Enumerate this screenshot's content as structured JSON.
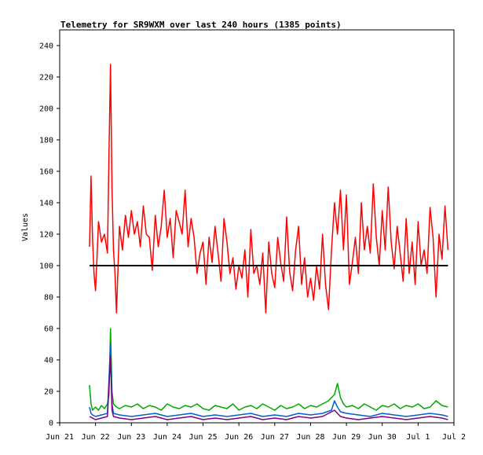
{
  "chart_data": {
    "type": "line",
    "title": "Telemetry for SR9WXM over last 240 hours (1385 points)",
    "ylabel": "Values",
    "xlabel": "",
    "ylim": [
      0,
      250
    ],
    "xlim_hours": [
      0,
      264
    ],
    "y_ticks": [
      0,
      20,
      40,
      60,
      80,
      100,
      120,
      140,
      160,
      180,
      200,
      220,
      240
    ],
    "x_ticks": [
      {
        "label": "Jun 21",
        "hour": 0
      },
      {
        "label": "Jun 22",
        "hour": 24
      },
      {
        "label": "Jun 23",
        "hour": 48
      },
      {
        "label": "Jun 24",
        "hour": 72
      },
      {
        "label": "Jun 25",
        "hour": 96
      },
      {
        "label": "Jun 26",
        "hour": 120
      },
      {
        "label": "Jun 27",
        "hour": 144
      },
      {
        "label": "Jun 28",
        "hour": 168
      },
      {
        "label": "Jun 29",
        "hour": 192
      },
      {
        "label": "Jun 30",
        "hour": 216
      },
      {
        "label": "Jul 1",
        "hour": 240
      },
      {
        "label": "Jul 2",
        "hour": 264
      }
    ],
    "reference_line": {
      "y": 100,
      "color": "#000000",
      "x_range_hours": [
        20,
        260
      ]
    },
    "grid": false,
    "colors": {
      "red": "#ff0000",
      "green": "#00a800",
      "blue": "#0060d0",
      "purple": "#800080",
      "reference": "#000000"
    },
    "series": [
      {
        "color_key": "red",
        "x_hours": [
          20,
          21,
          22,
          23,
          24,
          25,
          26,
          28,
          30,
          32,
          33,
          34,
          35,
          36,
          37,
          38,
          40,
          42,
          44,
          46,
          48,
          50,
          52,
          54,
          56,
          58,
          60,
          62,
          64,
          66,
          68,
          70,
          72,
          74,
          76,
          78,
          80,
          82,
          84,
          86,
          88,
          90,
          92,
          94,
          96,
          98,
          100,
          102,
          104,
          106,
          108,
          110,
          112,
          114,
          116,
          118,
          120,
          122,
          124,
          126,
          128,
          130,
          132,
          134,
          136,
          138,
          140,
          142,
          144,
          146,
          148,
          150,
          152,
          154,
          156,
          158,
          160,
          162,
          164,
          166,
          168,
          170,
          172,
          174,
          176,
          178,
          180,
          182,
          184,
          186,
          188,
          190,
          192,
          194,
          196,
          198,
          200,
          202,
          204,
          206,
          208,
          210,
          212,
          214,
          216,
          218,
          220,
          222,
          224,
          226,
          228,
          230,
          232,
          234,
          236,
          238,
          240,
          242,
          244,
          246,
          248,
          250,
          252,
          254,
          256,
          258,
          260
        ],
        "y": [
          112,
          157,
          118,
          95,
          84,
          105,
          128,
          115,
          120,
          108,
          172,
          228,
          150,
          110,
          95,
          70,
          125,
          110,
          132,
          118,
          135,
          120,
          128,
          112,
          138,
          120,
          118,
          97,
          132,
          112,
          125,
          148,
          118,
          130,
          105,
          135,
          128,
          120,
          148,
          112,
          130,
          118,
          95,
          108,
          115,
          88,
          118,
          102,
          125,
          108,
          90,
          130,
          115,
          95,
          105,
          85,
          100,
          92,
          110,
          80,
          123,
          95,
          100,
          88,
          108,
          70,
          115,
          95,
          86,
          118,
          102,
          90,
          131,
          96,
          84,
          110,
          125,
          88,
          105,
          80,
          92,
          78,
          100,
          85,
          120,
          88,
          72,
          110,
          140,
          120,
          148,
          110,
          145,
          88,
          102,
          118,
          95,
          140,
          110,
          125,
          108,
          152,
          118,
          100,
          135,
          110,
          150,
          115,
          98,
          125,
          108,
          90,
          130,
          95,
          115,
          88,
          128,
          100,
          110,
          95,
          137,
          118,
          80,
          120,
          104,
          138,
          110
        ]
      },
      {
        "color_key": "green",
        "x_hours": [
          20,
          21,
          22,
          23,
          24,
          26,
          28,
          30,
          32,
          33,
          34,
          35,
          36,
          38,
          40,
          44,
          48,
          52,
          56,
          60,
          64,
          68,
          72,
          76,
          80,
          84,
          88,
          92,
          96,
          100,
          104,
          108,
          112,
          116,
          120,
          124,
          128,
          132,
          136,
          140,
          144,
          148,
          152,
          156,
          160,
          164,
          168,
          172,
          176,
          180,
          184,
          186,
          188,
          190,
          192,
          196,
          200,
          204,
          208,
          212,
          216,
          220,
          224,
          228,
          232,
          236,
          240,
          244,
          248,
          252,
          256,
          260
        ],
        "y": [
          24,
          12,
          8,
          9,
          10,
          8,
          11,
          9,
          12,
          18,
          60,
          20,
          12,
          10,
          9,
          11,
          10,
          12,
          9,
          11,
          10,
          8,
          12,
          10,
          9,
          11,
          10,
          12,
          9,
          8,
          11,
          10,
          9,
          12,
          8,
          10,
          11,
          9,
          12,
          10,
          8,
          11,
          9,
          10,
          12,
          9,
          11,
          10,
          12,
          14,
          18,
          25,
          16,
          12,
          10,
          11,
          9,
          12,
          10,
          8,
          11,
          10,
          12,
          9,
          11,
          10,
          12,
          9,
          10,
          14,
          11,
          10
        ]
      },
      {
        "color_key": "blue",
        "x_hours": [
          20,
          21,
          22,
          24,
          28,
          32,
          34,
          35,
          36,
          40,
          48,
          56,
          64,
          72,
          80,
          88,
          96,
          104,
          112,
          120,
          128,
          136,
          144,
          152,
          160,
          168,
          176,
          182,
          184,
          186,
          188,
          192,
          200,
          208,
          216,
          224,
          232,
          240,
          248,
          256,
          260
        ],
        "y": [
          10,
          6,
          5,
          4,
          5,
          6,
          50,
          12,
          6,
          5,
          4,
          5,
          6,
          4,
          5,
          6,
          4,
          5,
          4,
          5,
          6,
          4,
          5,
          4,
          6,
          5,
          6,
          8,
          14,
          10,
          7,
          6,
          5,
          4,
          6,
          5,
          4,
          5,
          6,
          5,
          4
        ]
      },
      {
        "color_key": "purple",
        "x_hours": [
          20,
          22,
          24,
          28,
          32,
          34,
          35,
          36,
          40,
          48,
          56,
          64,
          72,
          80,
          88,
          96,
          104,
          112,
          120,
          128,
          136,
          144,
          152,
          160,
          168,
          176,
          184,
          186,
          188,
          192,
          200,
          208,
          216,
          224,
          232,
          240,
          248,
          256,
          260
        ],
        "y": [
          4,
          3,
          2,
          3,
          4,
          42,
          8,
          4,
          3,
          2,
          3,
          4,
          2,
          3,
          4,
          2,
          3,
          2,
          3,
          4,
          2,
          3,
          2,
          4,
          3,
          4,
          8,
          6,
          4,
          3,
          2,
          3,
          4,
          3,
          2,
          3,
          4,
          3,
          2
        ]
      }
    ]
  }
}
